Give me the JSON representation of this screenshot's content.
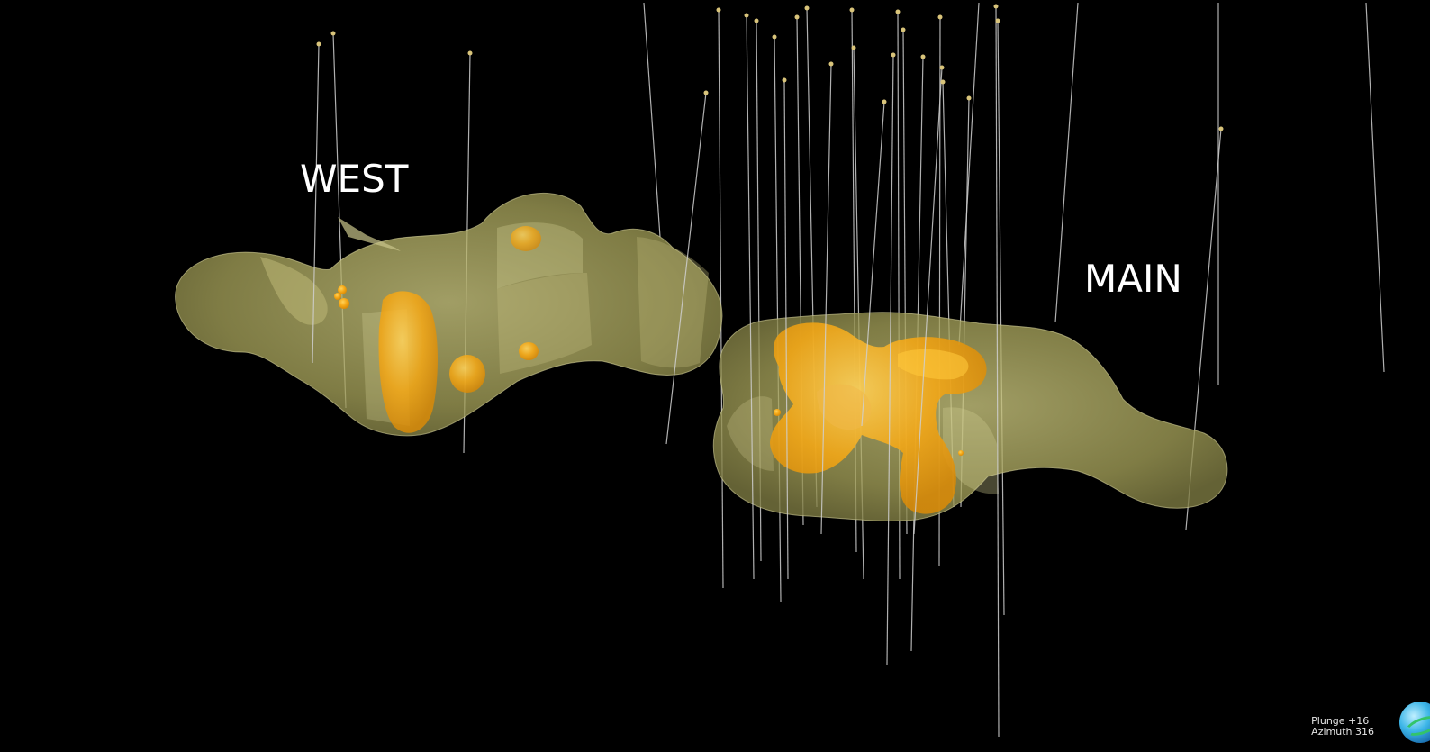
{
  "scene": {
    "labels": {
      "west": "WEST",
      "main": "MAIN"
    },
    "colors": {
      "background": "#000000",
      "envelope_fill": "#a9a55c",
      "envelope_edge": "#d8d49a",
      "highgrade_fill": "#f2a81a",
      "highgrade_light": "#ffd04a",
      "drillhole": "#cfcfcf",
      "collar": "#d9c47a"
    }
  },
  "orientation": {
    "plunge": "Plunge +16",
    "azimuth": "Azimuth 316",
    "icon": "orientation-globe-icon"
  }
}
